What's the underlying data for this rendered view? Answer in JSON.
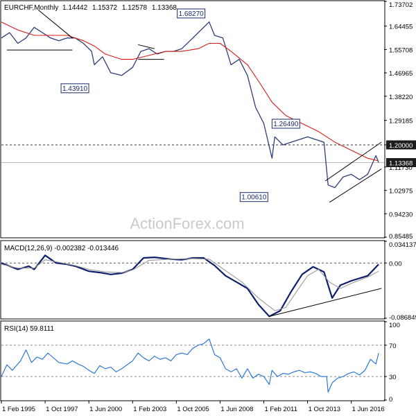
{
  "chart_data": [
    {
      "type": "ohlc",
      "title": "EURCHF,Monthly",
      "ohlc_readout": [
        "1.14442",
        "1.15372",
        "1.12578",
        "1.13368"
      ],
      "watermark": "ActionForex.com",
      "ylim": [
        0.85485,
        1.73702
      ],
      "y_ticks": [
        "1.73702",
        "1.64455",
        "1.55708",
        "1.46965",
        "1.38220",
        "1.29185",
        "1.20000",
        "1.11730",
        "1.02975",
        "0.94230",
        "0.85485"
      ],
      "y_tick_values": [
        1.73702,
        1.64455,
        1.55708,
        1.46965,
        1.3822,
        1.29185,
        1.2,
        1.1173,
        1.02975,
        0.9423,
        0.85485
      ],
      "x_ticks": [
        "1 Feb 1995",
        "1 Oct 1997",
        "1 Jun 2000",
        "1 Feb 2003",
        "1 Oct 2005",
        "1 Jun 2008",
        "1 Feb 2011",
        "1 Oct 2013",
        "1 Jun 2016"
      ],
      "price_labels": [
        {
          "text": "1.20000",
          "value": 1.2,
          "style": "dark"
        },
        {
          "text": "1.13368",
          "value": 1.13368,
          "style": "dark"
        }
      ],
      "annotations": [
        {
          "text": "1.68270",
          "date": "2007-10",
          "value": 1.6827
        },
        {
          "text": "1.43910",
          "date": "2000-10",
          "value": 1.4391
        },
        {
          "text": "1.26490",
          "date": "2011-08",
          "value": 1.2649
        },
        {
          "text": "1.00610",
          "date": "2011-08",
          "value": 1.0061
        }
      ],
      "series": [
        {
          "kind": "price",
          "color": "#2d3d7a",
          "points": [
            [
              "1995-02",
              1.6
            ],
            [
              "1995-08",
              1.62
            ],
            [
              "1996-02",
              1.58
            ],
            [
              "1996-08",
              1.6
            ],
            [
              "1997-02",
              1.64
            ],
            [
              "1997-08",
              1.62
            ],
            [
              "1998-02",
              1.6
            ],
            [
              "1998-08",
              1.59
            ],
            [
              "1999-02",
              1.6
            ],
            [
              "1999-08",
              1.6
            ],
            [
              "2000-02",
              1.58
            ],
            [
              "2000-08",
              1.55
            ],
            [
              "2000-10",
              1.5
            ],
            [
              "2001-04",
              1.53
            ],
            [
              "2001-10",
              1.47
            ],
            [
              "2002-06",
              1.46
            ],
            [
              "2003-02",
              1.49
            ],
            [
              "2003-08",
              1.55
            ],
            [
              "2004-02",
              1.56
            ],
            [
              "2004-08",
              1.54
            ],
            [
              "2005-02",
              1.55
            ],
            [
              "2005-08",
              1.55
            ],
            [
              "2006-02",
              1.56
            ],
            [
              "2006-08",
              1.59
            ],
            [
              "2007-02",
              1.62
            ],
            [
              "2007-10",
              1.66
            ],
            [
              "2008-02",
              1.61
            ],
            [
              "2008-08",
              1.6
            ],
            [
              "2009-02",
              1.5
            ],
            [
              "2009-08",
              1.52
            ],
            [
              "2010-02",
              1.46
            ],
            [
              "2010-08",
              1.34
            ],
            [
              "2011-02",
              1.28
            ],
            [
              "2011-08",
              1.15
            ],
            [
              "2011-10",
              1.23
            ],
            [
              "2012-04",
              1.2
            ],
            [
              "2012-10",
              1.21
            ],
            [
              "2013-04",
              1.22
            ],
            [
              "2013-10",
              1.23
            ],
            [
              "2014-04",
              1.22
            ],
            [
              "2014-10",
              1.21
            ],
            [
              "2015-01",
              1.05
            ],
            [
              "2015-06",
              1.04
            ],
            [
              "2015-12",
              1.08
            ],
            [
              "2016-06",
              1.09
            ],
            [
              "2016-12",
              1.07
            ],
            [
              "2017-06",
              1.09
            ],
            [
              "2017-12",
              1.16
            ],
            [
              "2018-02",
              1.13368
            ]
          ]
        },
        {
          "kind": "moving-average",
          "color": "#d41b1b",
          "points": [
            [
              "1995-02",
              1.66
            ],
            [
              "1996-02",
              1.63
            ],
            [
              "1997-02",
              1.61
            ],
            [
              "1998-02",
              1.61
            ],
            [
              "1999-02",
              1.61
            ],
            [
              "2000-02",
              1.59
            ],
            [
              "2000-10",
              1.57
            ],
            [
              "2001-06",
              1.54
            ],
            [
              "2002-06",
              1.52
            ],
            [
              "2003-02",
              1.52
            ],
            [
              "2004-02",
              1.535
            ],
            [
              "2005-02",
              1.55
            ],
            [
              "2006-02",
              1.55
            ],
            [
              "2007-02",
              1.56
            ],
            [
              "2007-10",
              1.58
            ],
            [
              "2008-06",
              1.58
            ],
            [
              "2009-02",
              1.55
            ],
            [
              "2010-02",
              1.5
            ],
            [
              "2010-10",
              1.44
            ],
            [
              "2011-08",
              1.36
            ],
            [
              "2012-06",
              1.31
            ],
            [
              "2013-06",
              1.28
            ],
            [
              "2014-06",
              1.25
            ],
            [
              "2015-06",
              1.21
            ],
            [
              "2016-06",
              1.18
            ],
            [
              "2017-06",
              1.15
            ],
            [
              "2018-02",
              1.14
            ]
          ]
        }
      ],
      "trendlines": [
        {
          "from": [
            "1997-05",
            1.705
          ],
          "to": [
            "1999-06",
            1.6
          ]
        },
        {
          "from": [
            "1995-06",
            1.555
          ],
          "to": [
            "1999-06",
            1.555
          ]
        },
        {
          "from": [
            "2003-06",
            1.575
          ],
          "to": [
            "2004-06",
            1.56
          ]
        },
        {
          "from": [
            "2003-06",
            1.52
          ],
          "to": [
            "2005-01",
            1.52
          ]
        },
        {
          "from": [
            "2014-11",
            1.065
          ],
          "to": [
            "2018-04",
            1.21
          ]
        },
        {
          "from": [
            "2015-02",
            0.985
          ],
          "to": [
            "2018-04",
            1.11
          ]
        }
      ],
      "hlines": [
        {
          "value": 1.2,
          "style": "dashed",
          "color": "#333333"
        },
        {
          "value": 1.13368,
          "style": "solid",
          "color": "#bbbbbb"
        }
      ]
    },
    {
      "type": "line",
      "title": "MACD(12,26,9) -0.002382 -0.013446",
      "ylim": [
        -0.086849,
        0.034137
      ],
      "y_ticks": [
        "0.034137",
        "0.00",
        "-0.086849"
      ],
      "y_tick_values": [
        0.034137,
        0.0,
        -0.086849
      ],
      "series": [
        {
          "kind": "macd",
          "color": "#0d1e6e",
          "points": [
            [
              "1995-02",
              0.0
            ],
            [
              "1996-02",
              -0.01
            ],
            [
              "1996-10",
              -0.005
            ],
            [
              "1997-02",
              -0.01
            ],
            [
              "1997-10",
              0.012
            ],
            [
              "1998-06",
              0.0
            ],
            [
              "1999-02",
              -0.002
            ],
            [
              "1999-08",
              -0.005
            ],
            [
              "2000-06",
              -0.013
            ],
            [
              "2001-02",
              -0.015
            ],
            [
              "2001-10",
              -0.018
            ],
            [
              "2002-06",
              -0.016
            ],
            [
              "2003-02",
              -0.01
            ],
            [
              "2003-10",
              0.008
            ],
            [
              "2004-06",
              0.009
            ],
            [
              "2005-06",
              0.006
            ],
            [
              "2006-02",
              0.005
            ],
            [
              "2006-10",
              0.008
            ],
            [
              "2007-06",
              0.008
            ],
            [
              "2008-02",
              -0.004
            ],
            [
              "2008-10",
              -0.02
            ],
            [
              "2009-06",
              -0.03
            ],
            [
              "2010-02",
              -0.04
            ],
            [
              "2010-10",
              -0.065
            ],
            [
              "2011-06",
              -0.084
            ],
            [
              "2012-02",
              -0.075
            ],
            [
              "2012-10",
              -0.045
            ],
            [
              "2013-06",
              -0.018
            ],
            [
              "2014-02",
              -0.006
            ],
            [
              "2014-10",
              -0.014
            ],
            [
              "2015-04",
              -0.055
            ],
            [
              "2015-10",
              -0.035
            ],
            [
              "2016-06",
              -0.028
            ],
            [
              "2017-06",
              -0.02
            ],
            [
              "2018-02",
              -0.002
            ]
          ]
        },
        {
          "kind": "signal",
          "color": "#999999",
          "points": [
            [
              "1995-02",
              -0.002
            ],
            [
              "1996-02",
              -0.008
            ],
            [
              "1997-02",
              -0.008
            ],
            [
              "1997-10",
              0.005
            ],
            [
              "1998-06",
              0.002
            ],
            [
              "1999-08",
              -0.004
            ],
            [
              "2000-06",
              -0.01
            ],
            [
              "2001-06",
              -0.014
            ],
            [
              "2002-06",
              -0.015
            ],
            [
              "2003-02",
              -0.011
            ],
            [
              "2004-02",
              0.004
            ],
            [
              "2005-06",
              0.006
            ],
            [
              "2006-10",
              0.007
            ],
            [
              "2007-10",
              0.006
            ],
            [
              "2008-10",
              -0.012
            ],
            [
              "2009-10",
              -0.03
            ],
            [
              "2010-10",
              -0.055
            ],
            [
              "2011-10",
              -0.075
            ],
            [
              "2012-06",
              -0.07
            ],
            [
              "2013-02",
              -0.045
            ],
            [
              "2013-10",
              -0.02
            ],
            [
              "2014-06",
              -0.01
            ],
            [
              "2015-02",
              -0.03
            ],
            [
              "2015-10",
              -0.04
            ],
            [
              "2016-06",
              -0.032
            ],
            [
              "2017-06",
              -0.022
            ],
            [
              "2018-02",
              -0.013
            ]
          ]
        }
      ],
      "trendlines": [
        {
          "from": [
            "2011-06",
            -0.084
          ],
          "to": [
            "2018-04",
            -0.04
          ]
        }
      ],
      "hlines": [
        {
          "value": 0.0,
          "style": "dashed",
          "color": "#555555"
        }
      ]
    },
    {
      "type": "line",
      "title": "RSI(14) 59.8111",
      "ylim": [
        0,
        100
      ],
      "y_ticks": [
        "100",
        "70",
        "30",
        "0"
      ],
      "y_tick_values": [
        100,
        70,
        30,
        0
      ],
      "series": [
        {
          "kind": "rsi",
          "color": "#1b6fd6",
          "points": [
            [
              "1995-02",
              30
            ],
            [
              "1995-06",
              45
            ],
            [
              "1995-10",
              38
            ],
            [
              "1996-04",
              50
            ],
            [
              "1996-08",
              64
            ],
            [
              "1996-12",
              48
            ],
            [
              "1997-04",
              55
            ],
            [
              "1997-08",
              52
            ],
            [
              "1997-12",
              60
            ],
            [
              "1998-04",
              54
            ],
            [
              "1998-08",
              48
            ],
            [
              "1999-02",
              46
            ],
            [
              "1999-06",
              50
            ],
            [
              "1999-10",
              46
            ],
            [
              "2000-02",
              43
            ],
            [
              "2000-06",
              38
            ],
            [
              "2000-10",
              34
            ],
            [
              "2001-02",
              44
            ],
            [
              "2001-06",
              40
            ],
            [
              "2001-10",
              42
            ],
            [
              "2002-02",
              36
            ],
            [
              "2002-06",
              40
            ],
            [
              "2002-10",
              45
            ],
            [
              "2003-02",
              50
            ],
            [
              "2003-06",
              60
            ],
            [
              "2003-10",
              54
            ],
            [
              "2004-02",
              50
            ],
            [
              "2004-06",
              56
            ],
            [
              "2004-10",
              52
            ],
            [
              "2005-02",
              54
            ],
            [
              "2005-06",
              50
            ],
            [
              "2005-10",
              58
            ],
            [
              "2006-02",
              60
            ],
            [
              "2006-06",
              58
            ],
            [
              "2006-10",
              66
            ],
            [
              "2007-02",
              70
            ],
            [
              "2007-06",
              72
            ],
            [
              "2007-10",
              78
            ],
            [
              "2008-02",
              58
            ],
            [
              "2008-06",
              54
            ],
            [
              "2008-10",
              40
            ],
            [
              "2009-02",
              36
            ],
            [
              "2009-06",
              40
            ],
            [
              "2009-10",
              28
            ],
            [
              "2010-02",
              40
            ],
            [
              "2010-06",
              28
            ],
            [
              "2010-10",
              33
            ],
            [
              "2011-02",
              30
            ],
            [
              "2011-06",
              20
            ],
            [
              "2011-08",
              38
            ],
            [
              "2011-12",
              30
            ],
            [
              "2012-04",
              34
            ],
            [
              "2012-08",
              33
            ],
            [
              "2012-12",
              36
            ],
            [
              "2013-04",
              38
            ],
            [
              "2013-08",
              35
            ],
            [
              "2013-12",
              36
            ],
            [
              "2014-04",
              34
            ],
            [
              "2014-08",
              30
            ],
            [
              "2014-12",
              30
            ],
            [
              "2015-01",
              10
            ],
            [
              "2015-04",
              22
            ],
            [
              "2015-08",
              28
            ],
            [
              "2015-12",
              30
            ],
            [
              "2016-04",
              34
            ],
            [
              "2016-08",
              36
            ],
            [
              "2016-12",
              32
            ],
            [
              "2017-04",
              38
            ],
            [
              "2017-08",
              52
            ],
            [
              "2017-12",
              46
            ],
            [
              "2018-02",
              60
            ]
          ]
        }
      ],
      "hlines": [
        {
          "value": 70,
          "style": "dashed",
          "color": "#888888"
        },
        {
          "value": 30,
          "style": "dashed",
          "color": "#888888"
        }
      ]
    }
  ]
}
